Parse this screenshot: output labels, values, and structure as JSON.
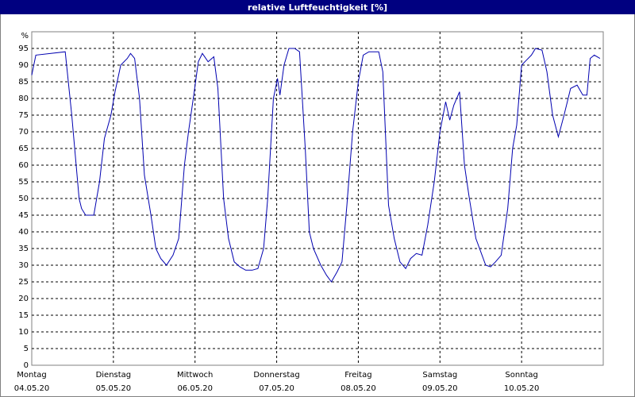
{
  "chart_data": {
    "type": "line",
    "title": "relative Luftfeuchtigkeit [%]",
    "y_unit": "%",
    "xlim": [
      0,
      7
    ],
    "xticks": [
      {
        "value": 0,
        "label": "Montag"
      },
      {
        "value": 1,
        "label": "Dienstag"
      },
      {
        "value": 2,
        "label": "Mittwoch"
      },
      {
        "value": 3,
        "label": "Donnerstag"
      },
      {
        "value": 4,
        "label": "Freitag"
      },
      {
        "value": 5,
        "label": "Samstag"
      },
      {
        "value": 6,
        "label": "Sonntag"
      }
    ],
    "xtick_dates": [
      "04.05.20",
      "05.05.20",
      "06.05.20",
      "07.05.20",
      "08.05.20",
      "09.05.20",
      "10.05.20"
    ],
    "ylim": [
      0,
      100
    ],
    "yticks": [
      0,
      5,
      10,
      15,
      20,
      25,
      30,
      35,
      40,
      45,
      50,
      55,
      60,
      65,
      70,
      75,
      80,
      85,
      90,
      95
    ],
    "grid": true,
    "series": [
      {
        "color": "#0000b0",
        "x": [
          0,
          0.05,
          0.41,
          0.49,
          0.58,
          0.61,
          0.66,
          0.76,
          0.83,
          0.89,
          0.97,
          1.02,
          1.09,
          1.17,
          1.21,
          1.26,
          1.32,
          1.38,
          1.46,
          1.52,
          1.58,
          1.65,
          1.73,
          1.8,
          1.87,
          1.92,
          1.99,
          2.04,
          2.09,
          2.16,
          2.23,
          2.28,
          2.35,
          2.41,
          2.48,
          2.55,
          2.62,
          2.7,
          2.77,
          2.84,
          2.89,
          2.96,
          3.01,
          3.04,
          3.09,
          3.15,
          3.22,
          3.28,
          3.35,
          3.4,
          3.45,
          3.54,
          3.61,
          3.67,
          3.74,
          3.8,
          3.86,
          3.93,
          4.0,
          4.06,
          4.13,
          4.25,
          4.3,
          4.37,
          4.44,
          4.51,
          4.58,
          4.64,
          4.71,
          4.78,
          4.85,
          4.93,
          5.0,
          5.07,
          5.12,
          5.17,
          5.24,
          5.3,
          5.36,
          5.44,
          5.5,
          5.56,
          5.62,
          5.68,
          5.75,
          5.83,
          5.89,
          5.94,
          6.0,
          6.06,
          6.12,
          6.17,
          6.25,
          6.31,
          6.38,
          6.45,
          6.52,
          6.6,
          6.68,
          6.75,
          6.8,
          6.84,
          6.89,
          6.96
        ],
        "values": [
          87,
          93,
          94,
          75,
          50,
          47,
          45,
          45,
          55,
          68,
          75,
          82,
          90,
          92,
          93.5,
          92,
          80,
          57,
          45,
          35,
          32,
          30,
          33,
          38,
          60,
          70,
          82,
          91,
          93.5,
          91,
          92.5,
          83,
          50,
          38,
          31,
          29.5,
          28.5,
          28.5,
          29,
          35,
          50,
          80,
          86,
          81,
          90,
          95,
          95,
          94,
          65,
          40,
          35,
          30,
          27,
          25,
          28,
          31,
          48,
          70,
          85,
          93,
          94,
          94,
          88,
          48,
          38,
          31,
          29,
          32,
          33.5,
          33,
          42,
          55,
          70,
          79,
          73.5,
          78,
          82,
          60,
          50,
          38,
          34,
          30,
          29.5,
          31,
          33,
          47,
          65,
          72,
          90,
          91.5,
          93,
          95,
          94.5,
          88,
          75,
          68.5,
          75,
          83,
          84,
          81,
          81,
          92,
          93,
          92
        ]
      }
    ]
  }
}
